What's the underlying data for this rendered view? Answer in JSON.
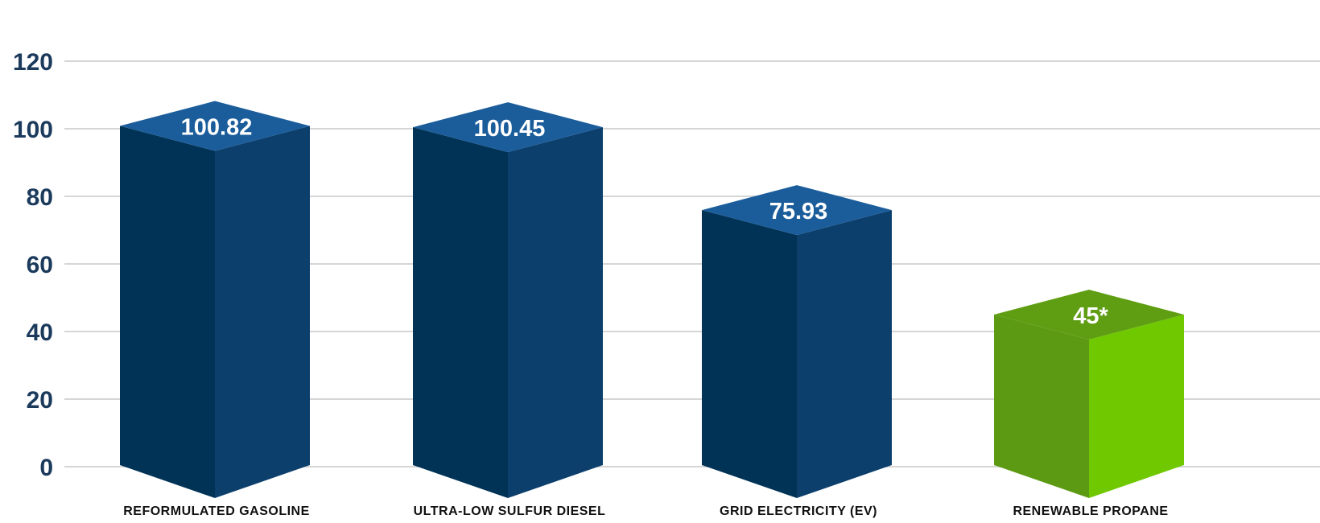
{
  "chart_data": {
    "type": "bar",
    "categories": [
      "REFORMULATED GASOLINE",
      "ULTRA-LOW SULFUR DIESEL",
      "GRID ELECTRICITY (EV)",
      "RENEWABLE PROPANE"
    ],
    "values": [
      100.82,
      100.45,
      75.93,
      45
    ],
    "value_labels": [
      "100.82",
      "100.45",
      "75.93",
      "45*"
    ],
    "yticks": [
      "0",
      "20",
      "40",
      "60",
      "80",
      "100",
      "120"
    ],
    "ylim": [
      0,
      120
    ],
    "grid": true,
    "style": "3d-box",
    "colors": {
      "bar_dark_side": "#003356",
      "bar_light_side": "#0d3f6d",
      "bar_top": "#1b5d9b",
      "highlight_dark_side": "#5c9a14",
      "highlight_light_side": "#6fc800",
      "highlight_top": "#5f9e13",
      "tick_text": "#1b3a5c",
      "category_text": "#111111",
      "grid": "#d6d6d6"
    },
    "highlight_index": 3
  }
}
